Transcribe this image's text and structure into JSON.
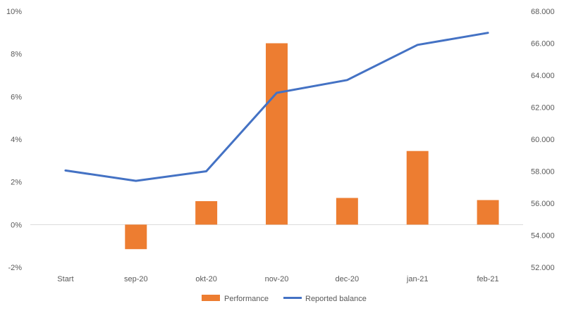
{
  "chart_data": {
    "type": "bar",
    "categories": [
      "Start",
      "sep-20",
      "okt-20",
      "nov-20",
      "dec-20",
      "jan-21",
      "feb-21"
    ],
    "series": [
      {
        "name": "Performance",
        "type": "bar",
        "axis": "left",
        "color": "#ED7D31",
        "values": [
          null,
          -1.15,
          1.1,
          8.5,
          1.25,
          3.45,
          1.15
        ]
      },
      {
        "name": "Reported balance",
        "type": "line",
        "axis": "right",
        "color": "#4472C4",
        "values": [
          58050,
          57400,
          58000,
          62900,
          63700,
          65900,
          66650
        ]
      }
    ],
    "y_left": {
      "min": -2,
      "max": 10,
      "step": 2,
      "tick_labels": [
        "-2%",
        "0%",
        "2%",
        "4%",
        "6%",
        "8%",
        "10%"
      ]
    },
    "y_right": {
      "min": 52000,
      "max": 68000,
      "step": 2000,
      "tick_labels": [
        "52.000",
        "54.000",
        "56.000",
        "58.000",
        "60.000",
        "62.000",
        "64.000",
        "66.000",
        "68.000"
      ]
    },
    "grid": false,
    "legend_position": "bottom",
    "title": "",
    "xlabel": "",
    "ylabel": ""
  }
}
